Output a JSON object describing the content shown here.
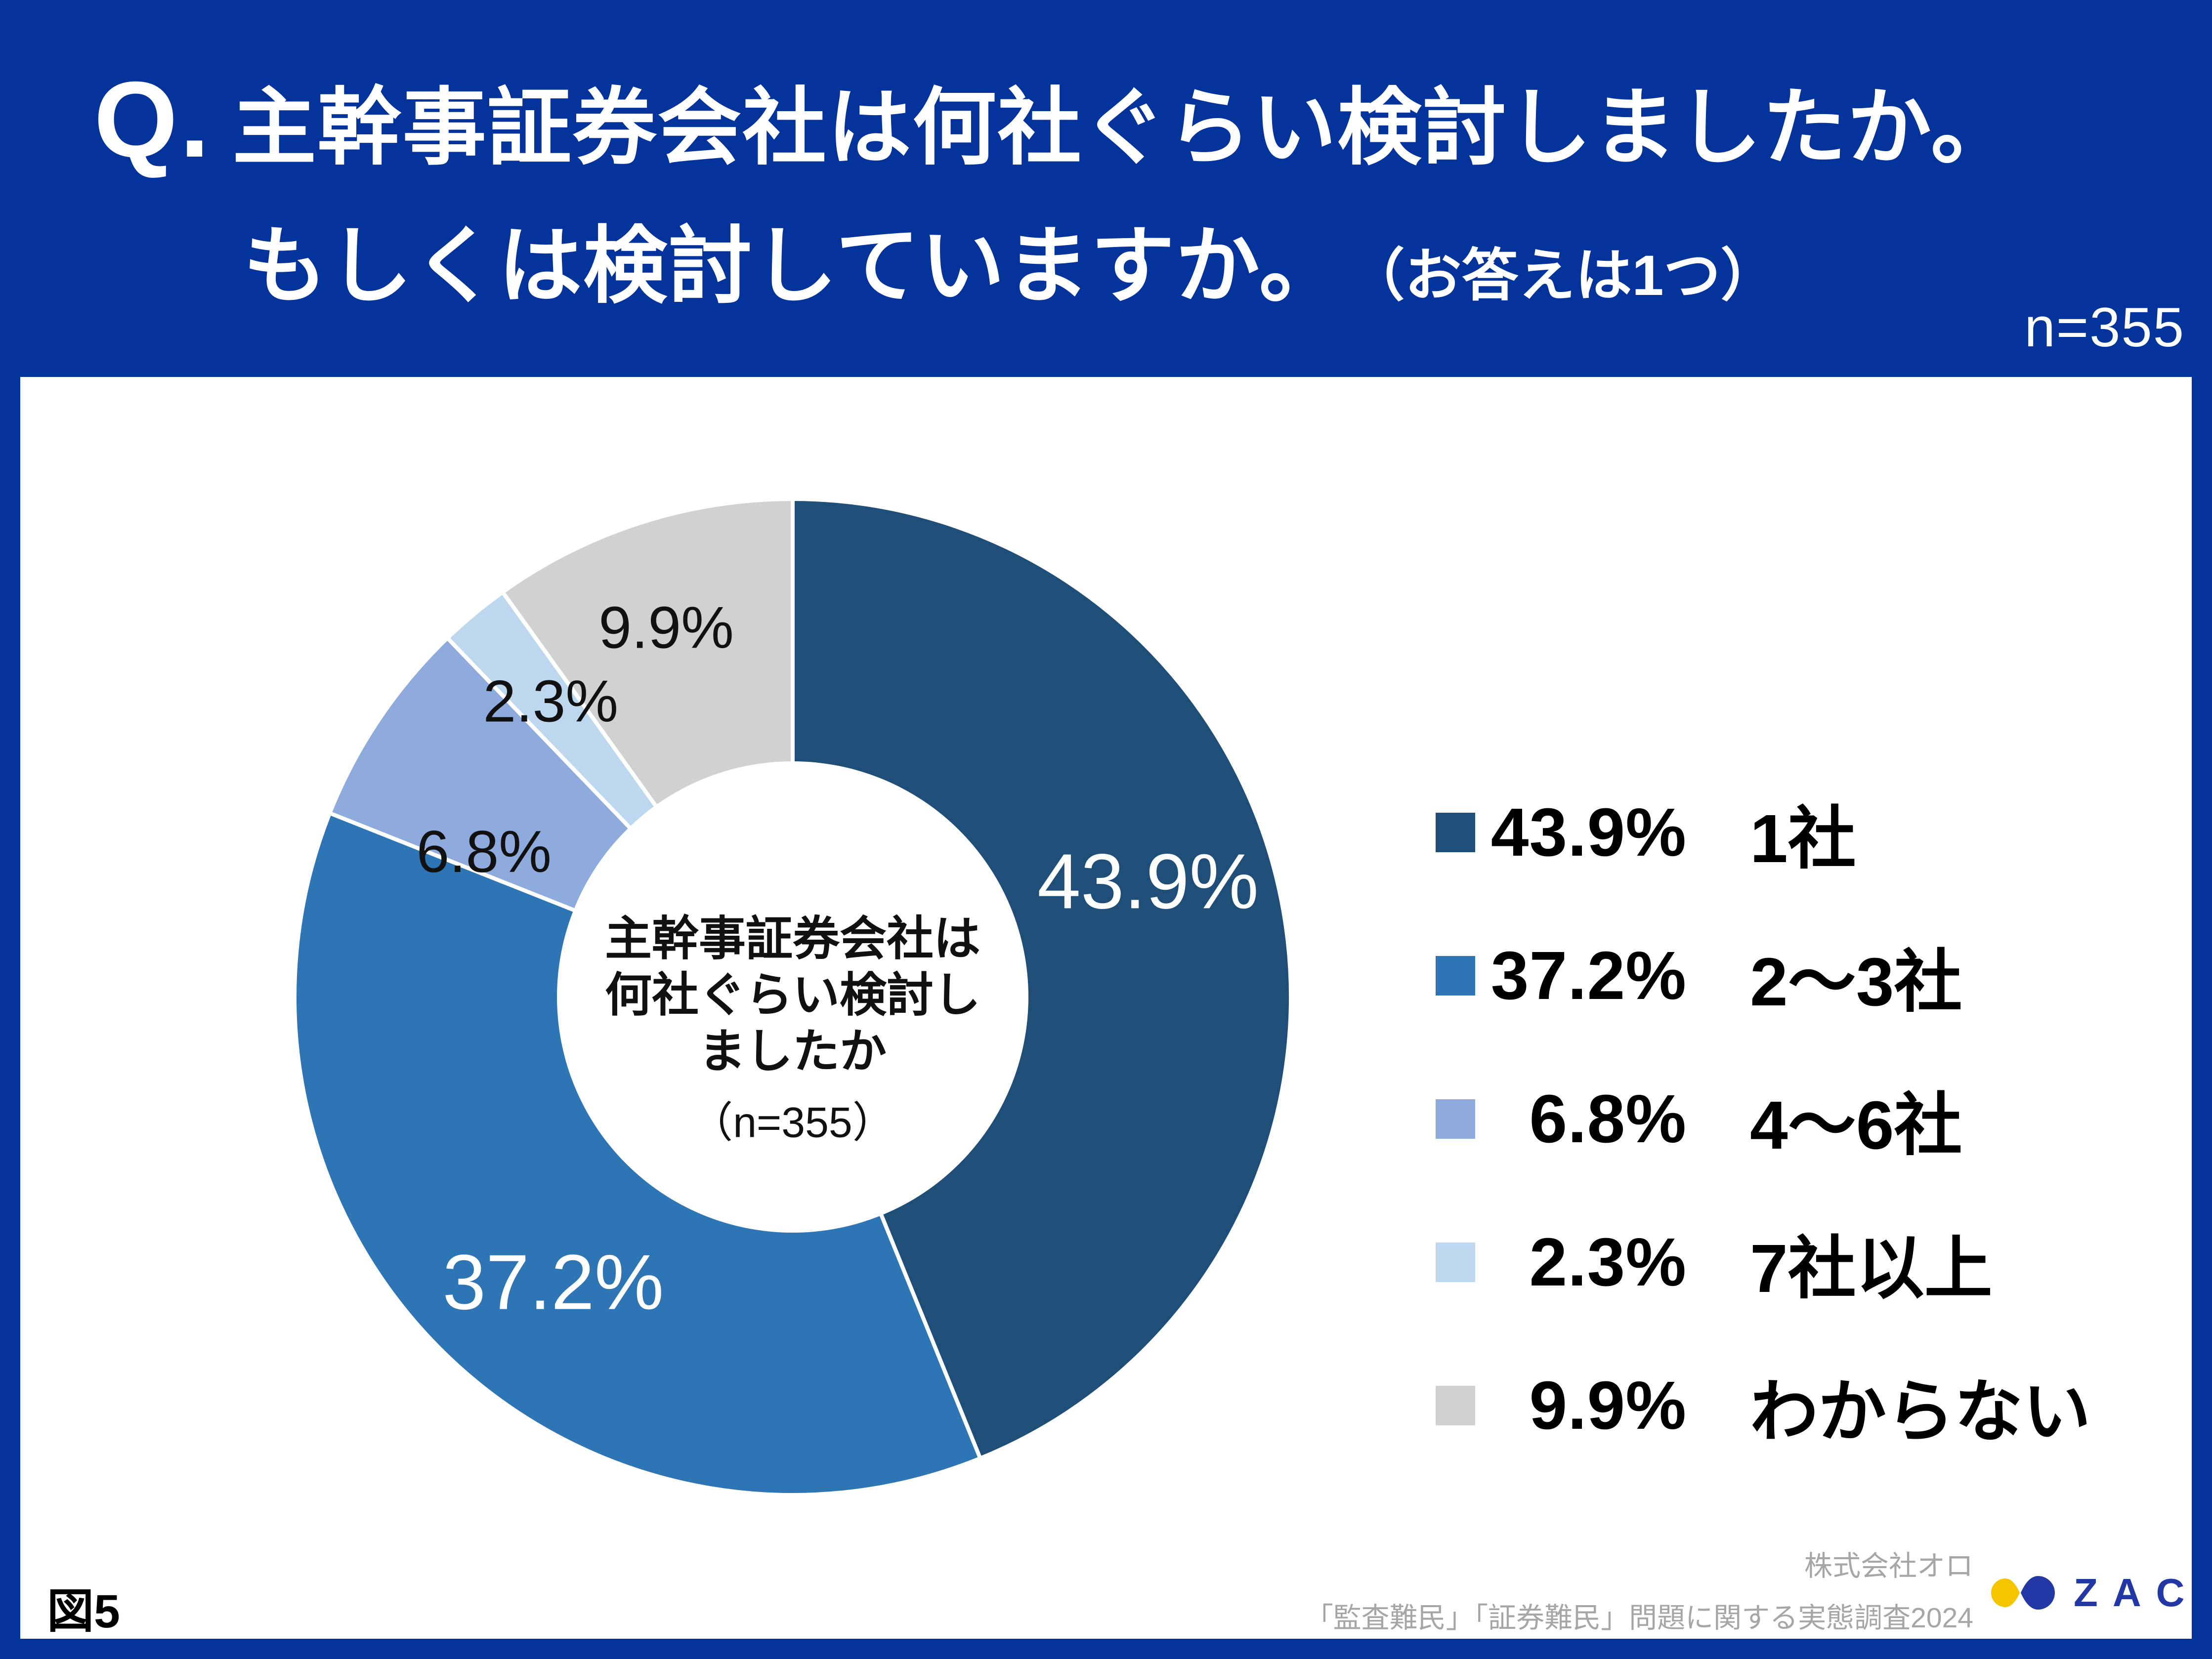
{
  "header": {
    "q_prefix": "Q.",
    "title_line1": "主幹事証券会社は何社ぐらい検討しましたか。",
    "title_line2": "もしくは検討していますか。",
    "title_caption": "（お答えは1つ）",
    "sample_size": "n=355"
  },
  "chart_data": {
    "type": "pie",
    "donut": true,
    "title": "主幹事証券会社は何社ぐらい検討しましたか",
    "subtitle": "（n=355）",
    "categories": [
      "1社",
      "2～3社",
      "4～6社",
      "7社以上",
      "わからない"
    ],
    "values": [
      43.9,
      37.2,
      6.8,
      2.3,
      9.9
    ],
    "unit": "%",
    "colors": [
      "#1F4E79",
      "#2E75B6",
      "#8FAADC",
      "#BDD7EE",
      "#D1D1D1"
    ],
    "start_angle_deg": 0,
    "direction": "clockwise",
    "legend_position": "right"
  },
  "center_label": {
    "lines": [
      "主幹事証券会社は",
      "何社ぐらい検討し",
      "ましたか"
    ],
    "subtitle": "（n=355）"
  },
  "footer": {
    "figure_label": "図5",
    "credit_line1": "株式会社オロ",
    "credit_line2": "「監査難民」「証券難民」問題に関する実態調査2024",
    "logo_text": "ZAC"
  },
  "colors": {
    "background_blue": "#04339B",
    "panel_white": "#FFFFFF",
    "slice_label_light": "#FFFFFF",
    "slice_label_dark": "#111111",
    "credit_gray": "#A6A6A6",
    "logo_blue": "#2438A5",
    "logo_yellow": "#F6C500"
  }
}
